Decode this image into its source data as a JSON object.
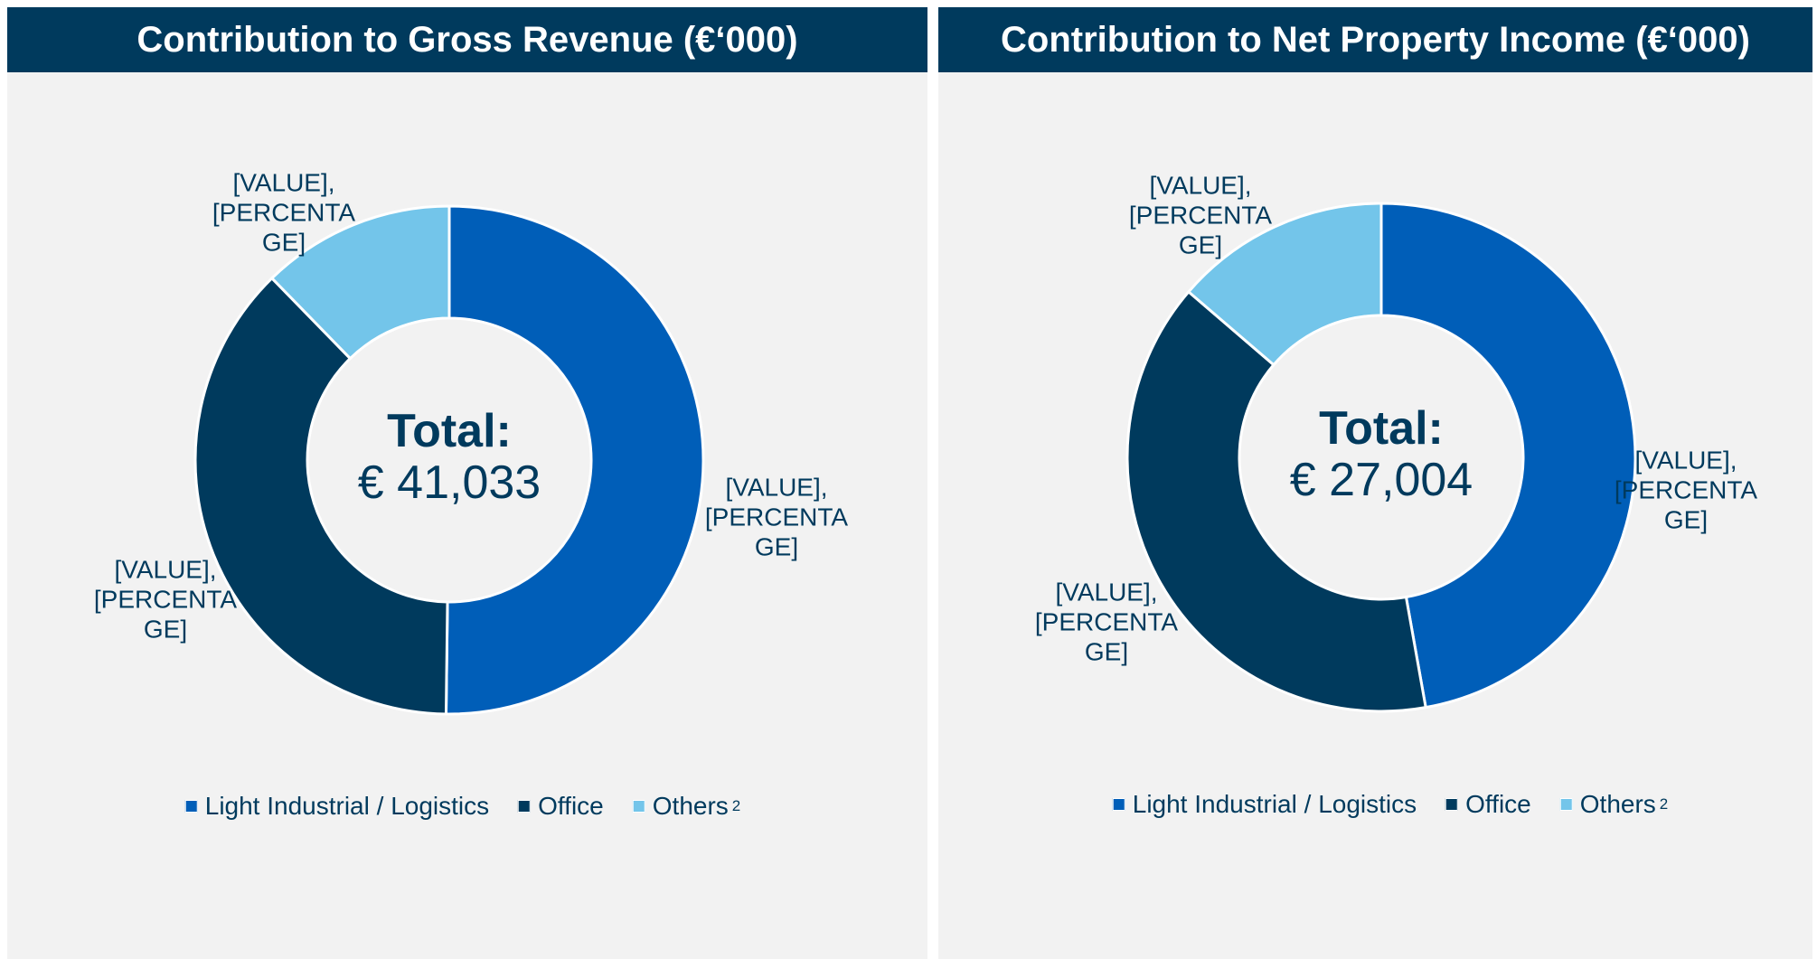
{
  "chart_data": [
    {
      "type": "donut",
      "title": "Contribution to Gross Revenue (€‘000)",
      "center_label": "Total:",
      "total": 41033,
      "total_label": "€ 41,033",
      "categories": [
        "Light Industrial / Logistics",
        "Office",
        "Others"
      ],
      "footnotes": [
        null,
        null,
        "2"
      ],
      "values": [
        50.2,
        37.5,
        12.3
      ],
      "colors": [
        "#005EB8",
        "#003A5D",
        "#73C5EA"
      ],
      "data_labels": [
        "[VALUE], [PERCENTAGE]",
        "[VALUE], [PERCENTAGE]",
        "[VALUE], [PERCENTAGE]"
      ]
    },
    {
      "type": "donut",
      "title": "Contribution to Net Property Income (€‘000)",
      "center_label": "Total:",
      "total": 27004,
      "total_label": "€ 27,004",
      "categories": [
        "Light Industrial / Logistics",
        "Office",
        "Others"
      ],
      "footnotes": [
        null,
        null,
        "2"
      ],
      "values": [
        47.2,
        39.1,
        13.7
      ],
      "colors": [
        "#005EB8",
        "#003A5D",
        "#73C5EA"
      ],
      "data_labels": [
        "[VALUE], [PERCENTAGE]",
        "[VALUE], [PERCENTAGE]",
        "[VALUE], [PERCENTAGE]"
      ]
    }
  ]
}
